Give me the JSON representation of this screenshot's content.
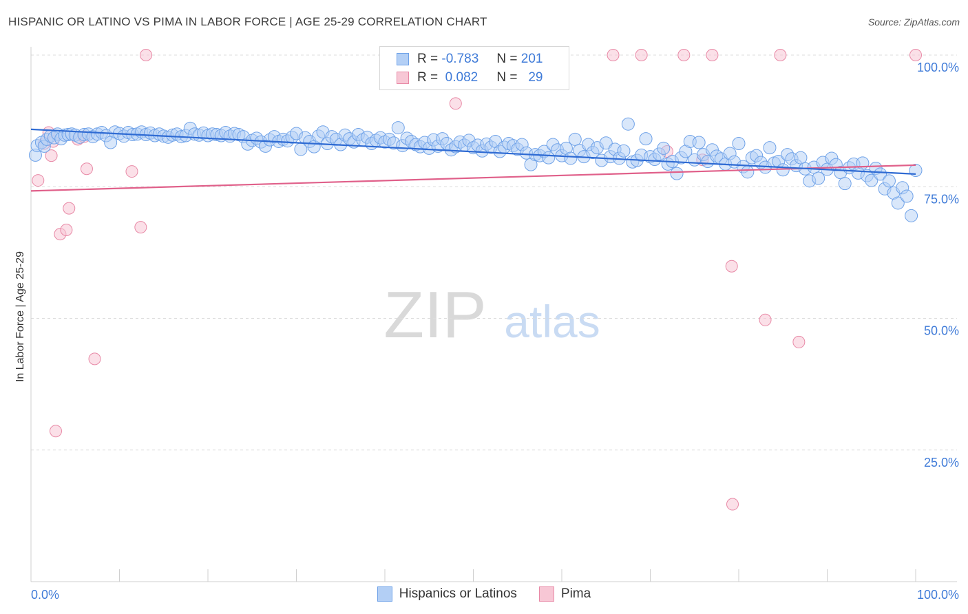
{
  "title": "HISPANIC OR LATINO VS PIMA IN LABOR FORCE | AGE 25-29 CORRELATION CHART",
  "source": "Source: ZipAtlas.com",
  "watermark": {
    "zip": "ZIP",
    "atlas": "atlas"
  },
  "legend_top": [
    {
      "r_label": "R =",
      "r_value": "-0.783",
      "n_label": "N =",
      "n_value": "201"
    },
    {
      "r_label": "R =",
      "r_value": " 0.082",
      "n_label": "N =",
      "n_value": "29"
    }
  ],
  "legend_bottom": [
    {
      "label": "Hispanics or Latinos"
    },
    {
      "label": "Pima"
    }
  ],
  "chart_data": {
    "type": "scatter",
    "title": "HISPANIC OR LATINO VS PIMA IN LABOR FORCE | AGE 25-29 CORRELATION CHART",
    "xlabel": "",
    "ylabel": "In Labor Force | Age 25-29",
    "xlim": [
      0,
      100
    ],
    "ylim": [
      0,
      100
    ],
    "x_tick_labels": [
      "0.0%",
      "100.0%"
    ],
    "y_tick_labels": [
      "25.0%",
      "50.0%",
      "75.0%",
      "100.0%"
    ],
    "y_ticks": [
      25,
      50,
      75,
      100
    ],
    "grid": true,
    "colors": {
      "blue": "#6fa2e8",
      "blue_fill": "#b3cff5",
      "pink": "#e889a6",
      "pink_fill": "#f7c7d5",
      "blue_line": "#2f6bd3",
      "pink_line": "#e0608a",
      "tick_text": "#3f7bd8"
    },
    "series": [
      {
        "name": "Hispanics or Latinos",
        "r": -0.783,
        "n": 201,
        "trend": [
          [
            0,
            85.9
          ],
          [
            100,
            77.4
          ]
        ],
        "points": [
          [
            0.5,
            81.0
          ],
          [
            0.7,
            82.8
          ],
          [
            1.2,
            83.4
          ],
          [
            1.5,
            82.7
          ],
          [
            1.8,
            84.0
          ],
          [
            2.2,
            84.6
          ],
          [
            2.6,
            84.3
          ],
          [
            3.0,
            85.0
          ],
          [
            3.4,
            84.1
          ],
          [
            3.8,
            84.8
          ],
          [
            4.2,
            84.9
          ],
          [
            4.6,
            85.0
          ],
          [
            5.0,
            84.8
          ],
          [
            5.5,
            84.4
          ],
          [
            6.0,
            84.9
          ],
          [
            6.5,
            85.0
          ],
          [
            7.0,
            84.5
          ],
          [
            7.5,
            85.0
          ],
          [
            8.0,
            85.3
          ],
          [
            8.5,
            84.7
          ],
          [
            9.0,
            83.4
          ],
          [
            9.5,
            85.4
          ],
          [
            10.0,
            85.1
          ],
          [
            10.5,
            84.6
          ],
          [
            11.0,
            85.3
          ],
          [
            11.5,
            84.9
          ],
          [
            12.0,
            85.0
          ],
          [
            12.5,
            85.4
          ],
          [
            13.0,
            84.9
          ],
          [
            13.5,
            85.2
          ],
          [
            14.0,
            84.7
          ],
          [
            14.5,
            85.0
          ],
          [
            15.0,
            84.6
          ],
          [
            15.5,
            84.4
          ],
          [
            16.0,
            84.8
          ],
          [
            16.5,
            85.0
          ],
          [
            17.0,
            84.5
          ],
          [
            17.5,
            84.7
          ],
          [
            18.0,
            86.1
          ],
          [
            18.5,
            85.0
          ],
          [
            19.0,
            84.8
          ],
          [
            19.5,
            85.2
          ],
          [
            20.0,
            84.7
          ],
          [
            20.5,
            85.0
          ],
          [
            21.0,
            84.9
          ],
          [
            21.5,
            84.7
          ],
          [
            22.0,
            85.3
          ],
          [
            22.5,
            84.6
          ],
          [
            23.0,
            85.1
          ],
          [
            23.5,
            84.9
          ],
          [
            24.0,
            84.5
          ],
          [
            24.5,
            83.1
          ],
          [
            25.0,
            83.8
          ],
          [
            25.5,
            84.2
          ],
          [
            26.0,
            83.5
          ],
          [
            26.5,
            82.7
          ],
          [
            27.0,
            83.9
          ],
          [
            27.5,
            84.5
          ],
          [
            28.0,
            83.6
          ],
          [
            28.5,
            84.0
          ],
          [
            29.0,
            83.7
          ],
          [
            29.5,
            84.4
          ],
          [
            30.0,
            85.1
          ],
          [
            30.5,
            82.1
          ],
          [
            31.0,
            84.3
          ],
          [
            31.5,
            83.6
          ],
          [
            32.0,
            82.6
          ],
          [
            32.5,
            84.6
          ],
          [
            33.0,
            85.4
          ],
          [
            33.5,
            83.2
          ],
          [
            34.0,
            84.5
          ],
          [
            34.5,
            84.0
          ],
          [
            35.0,
            83.0
          ],
          [
            35.5,
            84.8
          ],
          [
            36.0,
            84.1
          ],
          [
            36.5,
            83.5
          ],
          [
            37.0,
            84.9
          ],
          [
            37.5,
            83.9
          ],
          [
            38.0,
            84.4
          ],
          [
            38.5,
            83.2
          ],
          [
            39.0,
            83.8
          ],
          [
            39.5,
            84.3
          ],
          [
            40.0,
            83.5
          ],
          [
            40.5,
            84.0
          ],
          [
            41.0,
            83.3
          ],
          [
            41.5,
            86.2
          ],
          [
            42.0,
            82.8
          ],
          [
            42.5,
            84.2
          ],
          [
            43.0,
            83.6
          ],
          [
            43.5,
            83.0
          ],
          [
            44.0,
            82.6
          ],
          [
            44.5,
            83.4
          ],
          [
            45.0,
            82.3
          ],
          [
            45.5,
            83.9
          ],
          [
            46.0,
            82.7
          ],
          [
            46.5,
            84.1
          ],
          [
            47.0,
            83.2
          ],
          [
            47.5,
            82.0
          ],
          [
            48.0,
            82.6
          ],
          [
            48.5,
            83.5
          ],
          [
            49.0,
            82.9
          ],
          [
            49.5,
            83.8
          ],
          [
            50.0,
            82.4
          ],
          [
            50.5,
            82.9
          ],
          [
            51.0,
            81.8
          ],
          [
            51.5,
            83.1
          ],
          [
            52.0,
            82.5
          ],
          [
            52.5,
            83.6
          ],
          [
            53.0,
            81.7
          ],
          [
            53.5,
            82.5
          ],
          [
            54.0,
            83.2
          ],
          [
            54.5,
            82.8
          ],
          [
            55.0,
            82.1
          ],
          [
            55.5,
            83.0
          ],
          [
            56.0,
            81.4
          ],
          [
            56.5,
            79.2
          ],
          [
            57.0,
            81.1
          ],
          [
            57.5,
            80.9
          ],
          [
            58.0,
            81.7
          ],
          [
            58.5,
            80.5
          ],
          [
            59.0,
            83.0
          ],
          [
            59.5,
            82.0
          ],
          [
            60.0,
            80.9
          ],
          [
            60.5,
            82.3
          ],
          [
            61.0,
            80.4
          ],
          [
            61.5,
            84.0
          ],
          [
            62.0,
            81.9
          ],
          [
            62.5,
            80.7
          ],
          [
            63.0,
            83.0
          ],
          [
            63.5,
            81.5
          ],
          [
            64.0,
            82.4
          ],
          [
            64.5,
            80.0
          ],
          [
            65.0,
            83.3
          ],
          [
            65.5,
            80.7
          ],
          [
            66.0,
            82.1
          ],
          [
            66.5,
            80.4
          ],
          [
            67.0,
            81.8
          ],
          [
            67.5,
            86.9
          ],
          [
            68.0,
            79.7
          ],
          [
            68.5,
            80.0
          ],
          [
            69.0,
            81.0
          ],
          [
            69.5,
            84.1
          ],
          [
            70.0,
            80.7
          ],
          [
            70.5,
            80.2
          ],
          [
            71.0,
            81.2
          ],
          [
            71.5,
            82.3
          ],
          [
            72.0,
            79.3
          ],
          [
            72.5,
            79.8
          ],
          [
            73.0,
            77.5
          ],
          [
            73.5,
            80.5
          ],
          [
            74.0,
            81.7
          ],
          [
            74.5,
            83.6
          ],
          [
            75.0,
            80.1
          ],
          [
            75.5,
            83.4
          ],
          [
            76.0,
            81.1
          ],
          [
            76.5,
            79.8
          ],
          [
            77.0,
            82.0
          ],
          [
            77.5,
            80.8
          ],
          [
            78.0,
            80.3
          ],
          [
            78.5,
            79.3
          ],
          [
            79.0,
            81.3
          ],
          [
            79.5,
            79.7
          ],
          [
            80.0,
            83.2
          ],
          [
            80.5,
            78.8
          ],
          [
            81.0,
            77.8
          ],
          [
            81.5,
            80.5
          ],
          [
            82.0,
            80.9
          ],
          [
            82.5,
            79.6
          ],
          [
            83.0,
            78.7
          ],
          [
            83.5,
            82.4
          ],
          [
            84.0,
            79.5
          ],
          [
            84.5,
            79.8
          ],
          [
            85.0,
            78.2
          ],
          [
            85.5,
            81.1
          ],
          [
            86.0,
            80.3
          ],
          [
            86.5,
            79.0
          ],
          [
            87.0,
            80.5
          ],
          [
            87.5,
            78.4
          ],
          [
            88.0,
            76.1
          ],
          [
            88.5,
            78.7
          ],
          [
            89.0,
            76.6
          ],
          [
            89.5,
            79.6
          ],
          [
            90.0,
            78.3
          ],
          [
            90.5,
            80.4
          ],
          [
            91.0,
            79.2
          ],
          [
            91.5,
            77.7
          ],
          [
            92.0,
            75.6
          ],
          [
            92.5,
            78.6
          ],
          [
            93.0,
            79.3
          ],
          [
            93.5,
            77.6
          ],
          [
            94.0,
            79.5
          ],
          [
            94.5,
            77.1
          ],
          [
            95.0,
            76.2
          ],
          [
            95.5,
            78.5
          ],
          [
            96.0,
            77.4
          ],
          [
            96.5,
            74.6
          ],
          [
            97.0,
            76.1
          ],
          [
            97.5,
            73.8
          ],
          [
            98.0,
            71.9
          ],
          [
            98.5,
            74.8
          ],
          [
            99.0,
            73.2
          ],
          [
            99.5,
            69.5
          ],
          [
            100.0,
            78.1
          ]
        ]
      },
      {
        "name": "Pima",
        "r": 0.082,
        "n": 29,
        "trend": [
          [
            0,
            74.2
          ],
          [
            100,
            79.1
          ]
        ],
        "points": [
          [
            0.8,
            76.2
          ],
          [
            1.5,
            83.2
          ],
          [
            2.0,
            85.3
          ],
          [
            2.3,
            80.9
          ],
          [
            2.8,
            28.6
          ],
          [
            3.3,
            66.0
          ],
          [
            4.0,
            66.8
          ],
          [
            4.3,
            70.9
          ],
          [
            5.3,
            84.0
          ],
          [
            6.0,
            84.5
          ],
          [
            6.3,
            78.4
          ],
          [
            7.2,
            42.3
          ],
          [
            11.4,
            77.9
          ],
          [
            12.4,
            67.3
          ],
          [
            13.0,
            100.0
          ],
          [
            48.0,
            90.8
          ],
          [
            65.8,
            100.0
          ],
          [
            69.0,
            100.0
          ],
          [
            73.8,
            100.0
          ],
          [
            77.0,
            100.0
          ],
          [
            71.9,
            81.7
          ],
          [
            75.9,
            80.1
          ],
          [
            79.2,
            59.9
          ],
          [
            79.3,
            14.7
          ],
          [
            83.0,
            49.7
          ],
          [
            84.7,
            100.0
          ],
          [
            86.8,
            45.5
          ],
          [
            100.0,
            100.0
          ],
          [
            2.5,
            83.6
          ]
        ]
      }
    ]
  }
}
